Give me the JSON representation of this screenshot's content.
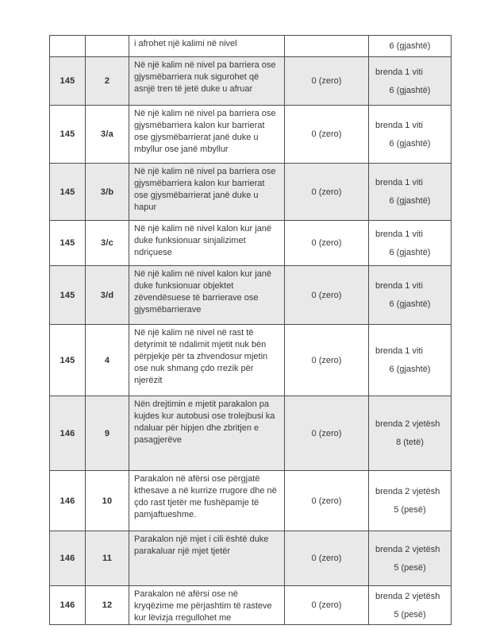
{
  "colors": {
    "shaded_row": "#e9e9e9",
    "border": "#4e4e4e",
    "text": "#383838"
  },
  "table": {
    "rows": [
      {
        "article": "",
        "point": "",
        "description": "i afrohet një kalimi në nivel",
        "points": "",
        "term_duration": "",
        "term_points": "6 (gjashtë)"
      },
      {
        "article": "145",
        "point": "2",
        "description": "Në një kalim në nivel pa barriera ose gjysmëbarriera nuk sigurohet që asnjë tren të jetë duke u afruar",
        "points": "0 (zero)",
        "term_duration": "brenda 1 viti",
        "term_points": "6 (gjashtë)"
      },
      {
        "article": "145",
        "point": "3/a",
        "description": "Në një kalim në nivel pa barriera ose gjysmëbarriera kalon kur barrierat ose gjysmëbarrierat janë duke u mbyllur ose janë mbyllur",
        "points": "0 (zero)",
        "term_duration": "brenda 1 viti",
        "term_points": "6 (gjashtë)"
      },
      {
        "article": "145",
        "point": "3/b",
        "description": "Në një kalim në nivel pa barriera ose gjysmëbarriera kalon kur barrierat ose gjysmëbarrierat janë duke u hapur",
        "points": "0 (zero)",
        "term_duration": "brenda 1 viti",
        "term_points": "6 (gjashtë)"
      },
      {
        "article": "145",
        "point": "3/c",
        "description": "Në një kalim në nivel kalon kur janë duke funksionuar sinjalizimet ndriçuese",
        "points": "0 (zero)",
        "term_duration": "brenda 1 viti",
        "term_points": "6 (gjashtë)"
      },
      {
        "article": "145",
        "point": "3/d",
        "description": "Në një kalim në nivel kalon kur janë duke funksionuar objektet zëvendësuese të barrierave ose gjysmëbarrierave",
        "points": "0 (zero)",
        "term_duration": "brenda 1 viti",
        "term_points": "6 (gjashtë)"
      },
      {
        "article": "145",
        "point": "4",
        "description": "Në një kalim në nivel në rast të detyrimit të ndalimit mjetit nuk bën përpjekje për ta zhvendosur mjetin ose nuk shmang çdo rrezik për njerëzit",
        "points": "0 (zero)",
        "term_duration": "brenda 1 viti",
        "term_points": "6 (gjashtë)"
      },
      {
        "article": "146",
        "point": "9",
        "description": "Nën drejtimin e mjetit parakalon pa kujdes kur autobusi ose trolejbusi ka ndaluar për hipjen dhe zbritjen e pasagjerëve",
        "points": "0 (zero)",
        "term_duration": "brenda 2 vjetësh",
        "term_points": "8 (tetë)"
      },
      {
        "article": "146",
        "point": "10",
        "description": "Parakalon në afërsi ose përgjatë kthesave a në kurrize rrugore dhe në çdo rast tjetër me fushëpamje të pamjaftueshme.",
        "points": "0 (zero)",
        "term_duration": "brenda 2 vjetësh",
        "term_points": "5 (pesë)"
      },
      {
        "article": "146",
        "point": "11",
        "description": "Parakalon një mjet i cili është duke parakaluar një mjet tjetër",
        "points": "0 (zero)",
        "term_duration": "brenda 2 vjetësh",
        "term_points": "5 (pesë)"
      },
      {
        "article": "146",
        "point": "12",
        "description": "Parakalon në afërsi ose në kryqëzime me përjashtim të rasteve kur lëvizja rregullohet me",
        "points": "0 (zero)",
        "term_duration": "brenda 2 vjetësh",
        "term_points": "5 (pesë)"
      }
    ]
  }
}
